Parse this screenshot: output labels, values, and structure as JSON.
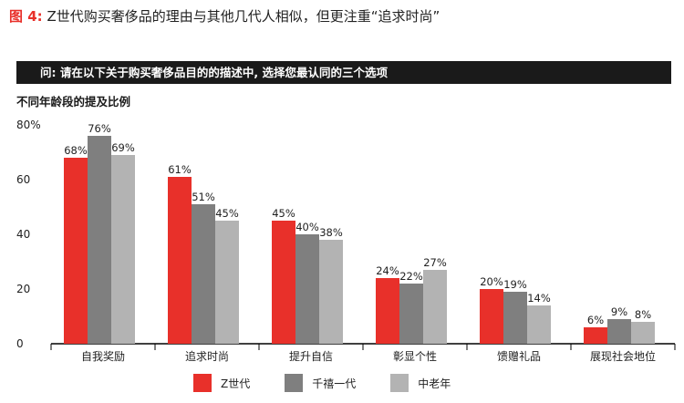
{
  "figure": {
    "prefix": "图 4:",
    "title": "Z世代购买奢侈品的理由与其他几代人相似，但更注重“追求时尚”"
  },
  "question": "问: 请在以下关于购买奢侈品目的的描述中, 选择您最认同的三个选项",
  "subtitle": "不同年龄段的提及比例",
  "chart_data": {
    "type": "bar",
    "categories": [
      "自我奖励",
      "追求时尚",
      "提升自信",
      "彰显个性",
      "馈赠礼品",
      "展现社会地位"
    ],
    "series": [
      {
        "name": "Z世代",
        "color": "#e8302a",
        "values": [
          68,
          61,
          45,
          24,
          20,
          6
        ],
        "labels": [
          "68%",
          "61%",
          "45%",
          "24%",
          "20%",
          "6%"
        ]
      },
      {
        "name": "千禧一代",
        "color": "#7f7f7f",
        "values": [
          76,
          51,
          40,
          22,
          19,
          9
        ],
        "labels": [
          "76%",
          "51%",
          "40%",
          "22%",
          "19%",
          "9%"
        ]
      },
      {
        "name": "中老年",
        "color": "#b3b3b3",
        "values": [
          69,
          45,
          38,
          27,
          14,
          8
        ],
        "labels": [
          "69%",
          "45%",
          "38%",
          "27%",
          "14%",
          "8%"
        ]
      }
    ],
    "ylim": [
      0,
      80
    ],
    "yticks": [
      "0",
      "20",
      "40",
      "60",
      "80%"
    ],
    "legend": "bottom",
    "grid": false
  }
}
